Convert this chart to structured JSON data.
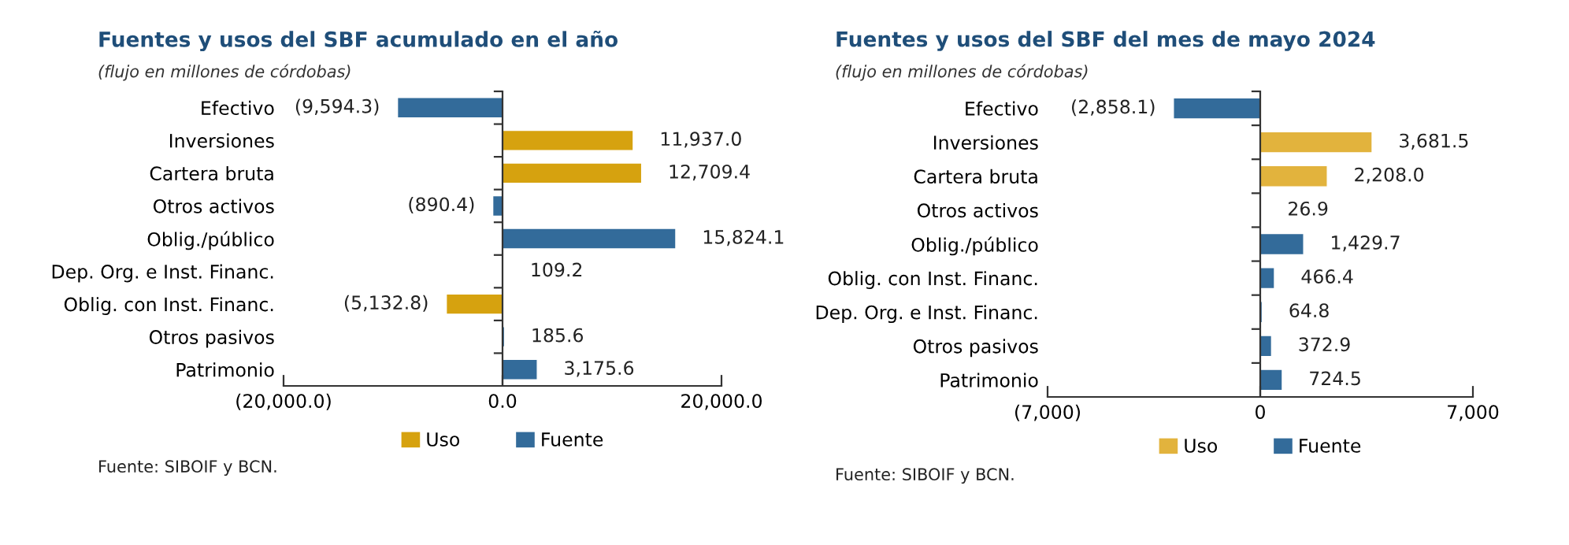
{
  "chart_data": [
    {
      "type": "bar",
      "orientation": "horizontal",
      "stacked": true,
      "title": "Fuentes y usos del SBF acumulado en el año",
      "subtitle": "(flujo en millones de córdobas)",
      "categories": [
        "Efectivo",
        "Inversiones",
        "Cartera bruta",
        "Otros activos",
        "Oblig./público",
        "Dep. Org. e Inst. Financ.",
        "Oblig. con Inst. Financ.",
        "Otros pasivos",
        "Patrimonio"
      ],
      "series": [
        {
          "name": "Uso",
          "color": "#d6a20f",
          "values": [
            null,
            11937.0,
            12709.4,
            null,
            null,
            null,
            -5132.8,
            null,
            null
          ],
          "value_labels": [
            null,
            "11,937.0",
            "12,709.4",
            null,
            null,
            null,
            "(5,132.8)",
            null,
            null
          ]
        },
        {
          "name": "Fuente",
          "color": "#336b9a",
          "values": [
            -9594.3,
            null,
            null,
            -890.4,
            15824.1,
            109.2,
            null,
            185.6,
            3175.6
          ],
          "value_labels": [
            "(9,594.3)",
            null,
            null,
            "(890.4)",
            "15,824.1",
            "109.2",
            null,
            "185.6",
            "3,175.6"
          ]
        }
      ],
      "xlim": [
        -20000,
        20000
      ],
      "xticks": [
        {
          "value": -20000,
          "label": "(20,000.0)"
        },
        {
          "value": 0,
          "label": "0.0"
        },
        {
          "value": 20000,
          "label": "20,000.0"
        }
      ],
      "legend": "bottom",
      "annotations": [
        "Fuente: SIBOIF y BCN."
      ]
    },
    {
      "type": "bar",
      "orientation": "horizontal",
      "stacked": true,
      "title": "Fuentes y usos del SBF del mes de mayo 2024",
      "subtitle": "(flujo en millones de córdobas)",
      "categories": [
        "Efectivo",
        "Inversiones",
        "Cartera bruta",
        "Otros activos",
        "Oblig./público",
        "Oblig. con Inst. Financ.",
        "Dep. Org. e Inst. Financ.",
        "Otros pasivos",
        "Patrimonio"
      ],
      "series": [
        {
          "name": "Uso",
          "color": "#e2b33d",
          "values": [
            null,
            3681.5,
            2208.0,
            26.9,
            null,
            null,
            null,
            null,
            null
          ],
          "value_labels": [
            null,
            "3,681.5",
            "2,208.0",
            "26.9",
            null,
            null,
            null,
            null,
            null
          ]
        },
        {
          "name": "Fuente",
          "color": "#336b9a",
          "values": [
            -2858.1,
            null,
            null,
            null,
            1429.7,
            466.4,
            64.8,
            372.9,
            724.5
          ],
          "value_labels": [
            "(2,858.1)",
            null,
            null,
            null,
            "1,429.7",
            "466.4",
            "64.8",
            "372.9",
            "724.5"
          ]
        }
      ],
      "xlim": [
        -7000,
        7000
      ],
      "xticks": [
        {
          "value": -7000,
          "label": "(7,000)"
        },
        {
          "value": 0,
          "label": "0"
        },
        {
          "value": 7000,
          "label": "7,000"
        }
      ],
      "legend": "bottom",
      "annotations": [
        "Fuente: SIBOIF y BCN."
      ]
    }
  ]
}
